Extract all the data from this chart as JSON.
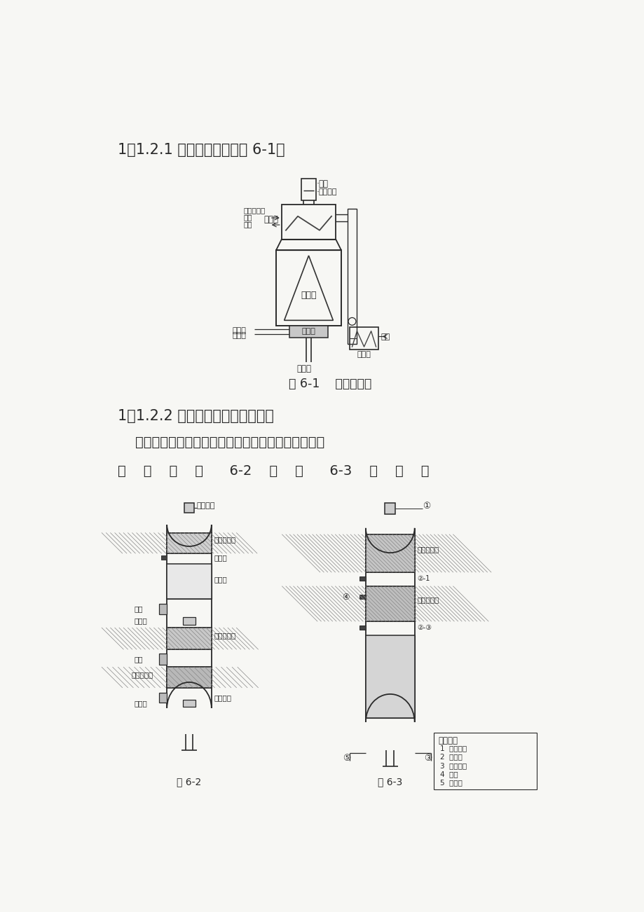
{
  "bg_color": "#f7f7f4",
  "text_color": "#1a1a1a",
  "page_width": 9.2,
  "page_height": 13.02,
  "title1": "1．1.2.1 原料预热炉，见图 6-1。",
  "fig1_caption": "图 6-1    原料预热炉",
  "title2": "1．1.2.2 加氢反应器与脱硫反应器",
  "para2_line1": "    原料脱硫部分的反应器主要有加氢反应器和脱硫反应",
  "para2_line2": "器    ，    如    图      6-2    、    图      6-3    所    示    。"
}
